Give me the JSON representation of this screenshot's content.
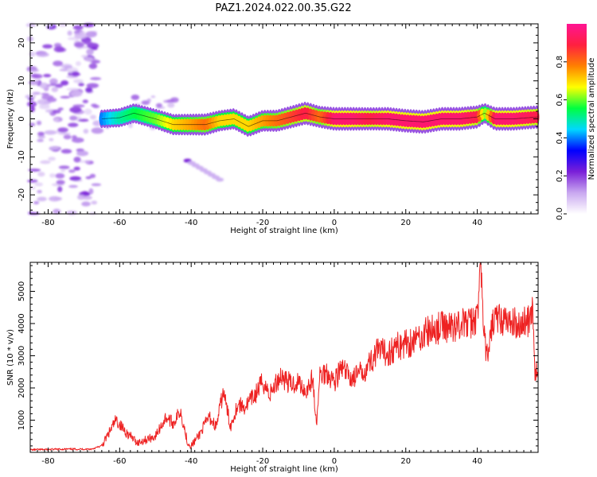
{
  "title": "PAZ1.2024.022.00.35.G22",
  "chart_data": [
    {
      "type": "heatmap",
      "xlabel": "Height of straight line (km)",
      "ylabel": "Frequency (Hz)",
      "xlim": [
        -85,
        57
      ],
      "ylim": [
        -25,
        25
      ],
      "xticks": [
        -80,
        -60,
        -40,
        -20,
        0,
        20,
        40
      ],
      "yticks": [
        -20,
        -10,
        0,
        10,
        20
      ],
      "colorbar": {
        "label": "Normalized spectral amplitude",
        "range": [
          0,
          1
        ],
        "ticks": [
          0.0,
          0.2,
          0.4,
          0.6,
          0.8
        ],
        "colormap": [
          "#ffffff",
          "#c9a8f0",
          "#7a1fd8",
          "#0000ff",
          "#00d8ff",
          "#00ff40",
          "#ffff00",
          "#ff8000",
          "#ff2040",
          "#ff1493"
        ]
      },
      "ridge": {
        "x": [
          -65,
          -60,
          -56,
          -50,
          -45,
          -40,
          -36,
          -32,
          -28,
          -24,
          -20,
          -16,
          -12,
          -8,
          -4,
          0,
          5,
          10,
          15,
          20,
          25,
          30,
          35,
          40,
          42,
          45,
          50,
          57
        ],
        "freq": [
          0.0,
          0.3,
          1.5,
          0.0,
          -1.5,
          -1.5,
          -1.5,
          -0.5,
          0.0,
          -2.0,
          -0.5,
          -0.5,
          0.5,
          1.5,
          0.5,
          0.0,
          0.0,
          0.0,
          0.0,
          -0.5,
          -0.8,
          0.0,
          0.0,
          0.5,
          1.5,
          0.0,
          0.0,
          0.5
        ],
        "amp": [
          0.4,
          0.5,
          0.55,
          0.6,
          0.7,
          0.75,
          0.8,
          0.7,
          0.7,
          0.7,
          0.75,
          0.8,
          0.85,
          0.9,
          0.8,
          0.95,
          0.95,
          0.9,
          0.95,
          0.95,
          0.95,
          0.95,
          0.95,
          0.9,
          0.6,
          0.95,
          0.95,
          0.9
        ]
      },
      "noise_region_x": [
        -85,
        -66
      ],
      "secondary_streak": {
        "x": [
          -41,
          -32
        ],
        "freq": [
          -11,
          -16
        ]
      }
    },
    {
      "type": "line",
      "xlabel": "Height of straight line (km)",
      "ylabel": "SNR (10 * v/v)",
      "xlim": [
        -85,
        57
      ],
      "ylim": [
        0,
        5900
      ],
      "xticks": [
        -80,
        -60,
        -40,
        -20,
        0,
        20,
        40
      ],
      "yticks": [
        1000,
        2000,
        3000,
        4000,
        5000
      ],
      "color": "#ee2222",
      "series": [
        {
          "x": [
            -85,
            -75,
            -68,
            -65,
            -63,
            -61,
            -58,
            -55,
            -50,
            -47,
            -45,
            -43,
            -41,
            -40,
            -38,
            -35,
            -33,
            -31,
            -29,
            -27,
            -25,
            -22,
            -20,
            -18,
            -15,
            -12,
            -10,
            -8,
            -6,
            -5,
            -4,
            -2,
            0,
            2,
            5,
            8,
            10,
            12,
            15,
            18,
            20,
            23,
            25,
            28,
            30,
            33,
            35,
            38,
            40,
            41,
            41.5,
            42,
            43,
            44,
            45,
            47,
            50,
            52,
            55,
            55.5,
            56,
            57
          ],
          "y": [
            80,
            100,
            100,
            200,
            600,
            1000,
            600,
            300,
            500,
            1100,
            900,
            1300,
            300,
            200,
            500,
            1100,
            800,
            1900,
            800,
            1500,
            1400,
            1800,
            2200,
            1800,
            2400,
            2100,
            2200,
            1900,
            2300,
            800,
            2400,
            2500,
            2200,
            2600,
            2300,
            2500,
            2800,
            3100,
            3100,
            3300,
            3400,
            3500,
            3700,
            3800,
            3900,
            3900,
            4000,
            4000,
            4200,
            5900,
            4500,
            3500,
            2800,
            3900,
            4200,
            4100,
            4000,
            4000,
            4100,
            4400,
            2600,
            2300
          ]
        }
      ]
    }
  ]
}
